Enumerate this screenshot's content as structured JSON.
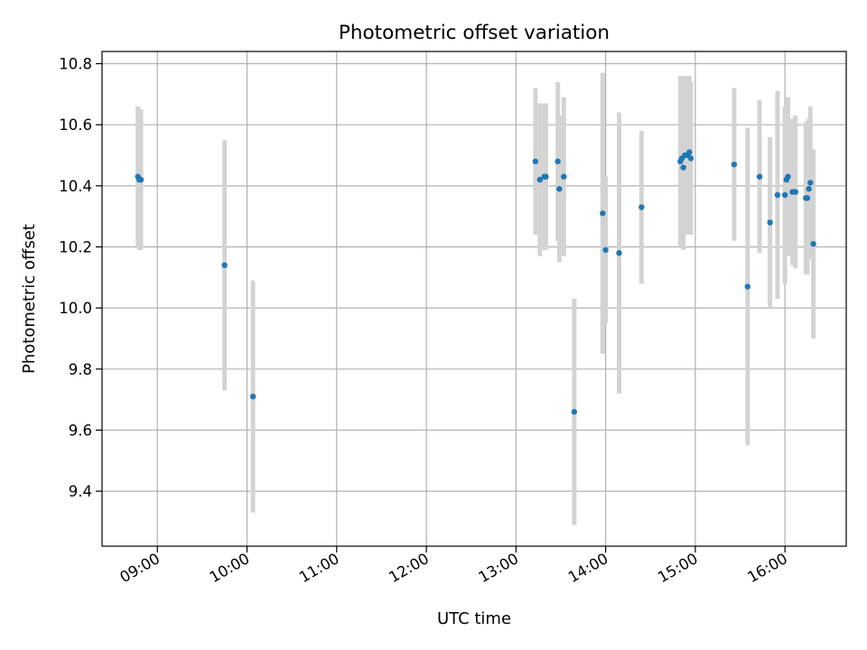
{
  "chart_data": {
    "type": "scatter",
    "title": "Photometric offset variation",
    "xlabel": "UTC time",
    "ylabel": "Photometric offset",
    "x_ticks": [
      "09:00",
      "10:00",
      "11:00",
      "12:00",
      "13:00",
      "14:00",
      "15:00",
      "16:00"
    ],
    "y_ticks": [
      "9.4",
      "9.6",
      "9.8",
      "10.0",
      "10.2",
      "10.4",
      "10.6",
      "10.8"
    ],
    "xlim": [
      "08:23",
      "16:41"
    ],
    "ylim": [
      9.22,
      10.84
    ],
    "grid": true,
    "legend": "none",
    "colors": {
      "point": "#1f77b4",
      "errorbar": "#d3d3d3",
      "grid": "#b0b0b0"
    },
    "points": [
      {
        "x": "08:47",
        "y": 10.43,
        "err": 0.23
      },
      {
        "x": "08:48",
        "y": 10.42,
        "err": 0.23
      },
      {
        "x": "08:49",
        "y": 10.42,
        "err": 0.23
      },
      {
        "x": "09:45",
        "y": 10.14,
        "err": 0.41
      },
      {
        "x": "10:04",
        "y": 9.71,
        "err": 0.38
      },
      {
        "x": "13:13",
        "y": 10.48,
        "err": 0.24
      },
      {
        "x": "13:16",
        "y": 10.42,
        "err": 0.25
      },
      {
        "x": "13:19",
        "y": 10.43,
        "err": 0.24
      },
      {
        "x": "13:20",
        "y": 10.43,
        "err": 0.24
      },
      {
        "x": "13:28",
        "y": 10.48,
        "err": 0.26
      },
      {
        "x": "13:29",
        "y": 10.39,
        "err": 0.24
      },
      {
        "x": "13:32",
        "y": 10.43,
        "err": 0.26
      },
      {
        "x": "13:39",
        "y": 9.66,
        "err": 0.37
      },
      {
        "x": "13:58",
        "y": 10.31,
        "err": 0.46
      },
      {
        "x": "14:00",
        "y": 10.19,
        "err": 0.24
      },
      {
        "x": "14:09",
        "y": 10.18,
        "err": 0.46
      },
      {
        "x": "14:24",
        "y": 10.33,
        "err": 0.25
      },
      {
        "x": "14:50",
        "y": 10.48,
        "err": 0.28
      },
      {
        "x": "14:51",
        "y": 10.49,
        "err": 0.27
      },
      {
        "x": "14:52",
        "y": 10.46,
        "err": 0.27
      },
      {
        "x": "14:53",
        "y": 10.5,
        "err": 0.26
      },
      {
        "x": "14:55",
        "y": 10.5,
        "err": 0.26
      },
      {
        "x": "14:56",
        "y": 10.51,
        "err": 0.25
      },
      {
        "x": "14:57",
        "y": 10.49,
        "err": 0.25
      },
      {
        "x": "15:26",
        "y": 10.47,
        "err": 0.25
      },
      {
        "x": "15:35",
        "y": 10.07,
        "err": 0.52
      },
      {
        "x": "15:43",
        "y": 10.43,
        "err": 0.25
      },
      {
        "x": "15:50",
        "y": 10.28,
        "err": 0.28
      },
      {
        "x": "15:55",
        "y": 10.37,
        "err": 0.34
      },
      {
        "x": "16:00",
        "y": 10.37,
        "err": 0.29
      },
      {
        "x": "16:01",
        "y": 10.42,
        "err": 0.24
      },
      {
        "x": "16:02",
        "y": 10.43,
        "err": 0.26
      },
      {
        "x": "16:05",
        "y": 10.38,
        "err": 0.24
      },
      {
        "x": "16:07",
        "y": 10.38,
        "err": 0.25
      },
      {
        "x": "16:14",
        "y": 10.36,
        "err": 0.25
      },
      {
        "x": "16:15",
        "y": 10.36,
        "err": 0.25
      },
      {
        "x": "16:16",
        "y": 10.39,
        "err": 0.23
      },
      {
        "x": "16:17",
        "y": 10.41,
        "err": 0.25
      },
      {
        "x": "16:19",
        "y": 10.21,
        "err": 0.31
      }
    ]
  }
}
